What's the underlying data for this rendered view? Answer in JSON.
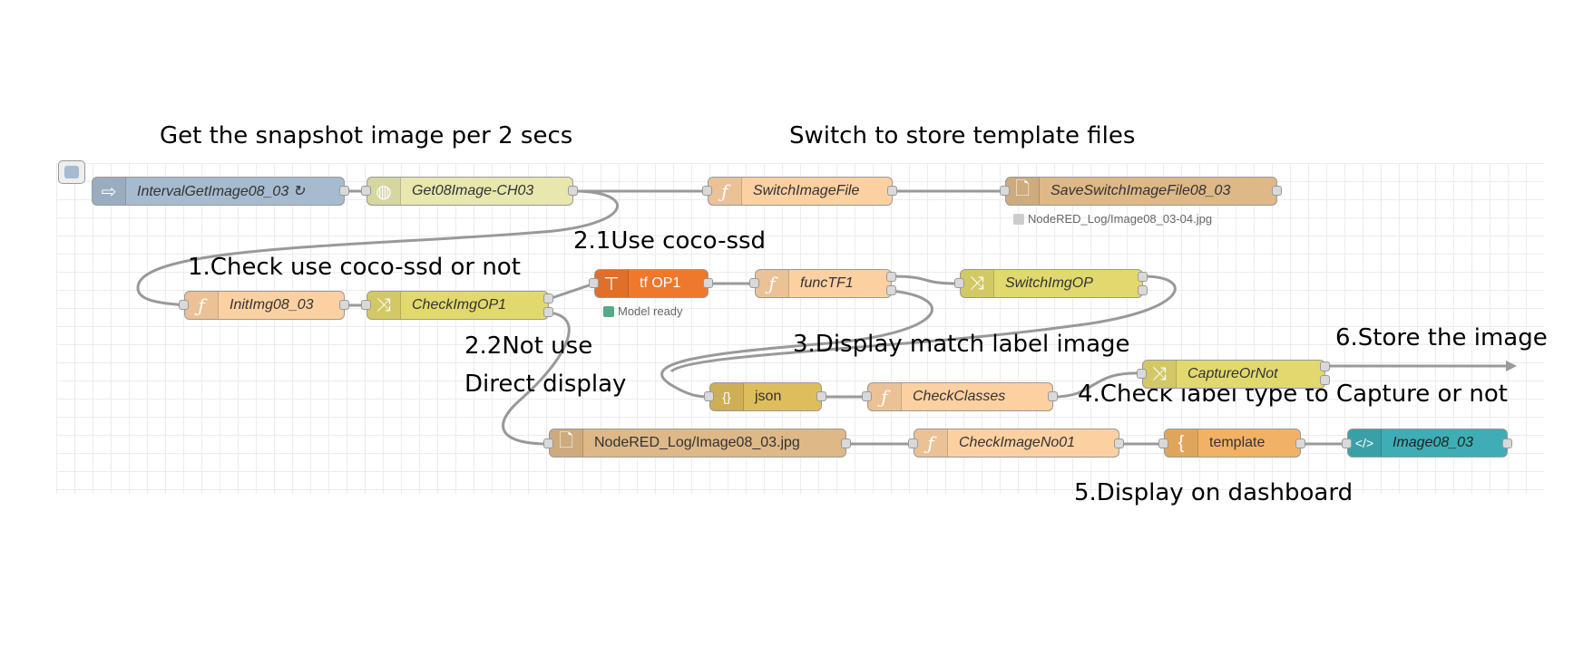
{
  "captions": {
    "get_snapshot": "Get the snapshot image per 2 secs",
    "switch_store": "Switch to store template files",
    "use_cocossd": "2.1Use coco-ssd",
    "check_use": "1.Check use coco-ssd or not",
    "not_use_1": "2.2Not use",
    "not_use_2": "Direct display",
    "display_match": "3.Display match label image",
    "store_image": "6.Store the image",
    "check_label": "4.Check label type to Capture or not",
    "display_dashboard": "5.Display on dashboard"
  },
  "nodes": {
    "interval": {
      "label": "IntervalGetImage08_03 ↻",
      "icon": "arrow-icon",
      "color": "#a6bbcf"
    },
    "get08": {
      "label": "Get08Image-CH03",
      "icon": "globe-icon",
      "color": "#e7e7ae"
    },
    "switchImageFile": {
      "label": "SwitchImageFile",
      "icon": "function-icon",
      "color": "#fdd0a2"
    },
    "saveSwitch": {
      "label": "SaveSwitchImageFile08_03",
      "icon": "file-icon",
      "color": "#deb887"
    },
    "initImg": {
      "label": "InitImg08_03",
      "icon": "function-icon",
      "color": "#fdd0a2"
    },
    "checkImgOP1": {
      "label": "CheckImgOP1",
      "icon": "switch-icon",
      "color": "#e2d96e"
    },
    "tfOP1": {
      "label": "tf OP1",
      "icon": "tensorflow-icon",
      "color": "#f0782d"
    },
    "funcTF1": {
      "label": "funcTF1",
      "icon": "function-icon",
      "color": "#fdd0a2"
    },
    "switchImgOP": {
      "label": "SwitchImgOP",
      "icon": "switch-icon",
      "color": "#e2d96e"
    },
    "captureOrNot": {
      "label": "CaptureOrNot",
      "icon": "switch-icon",
      "color": "#e2d96e"
    },
    "json": {
      "label": "json",
      "icon": "json-icon",
      "color": "#debd5c"
    },
    "checkClasses": {
      "label": "CheckClasses",
      "icon": "function-icon",
      "color": "#fdd0a2"
    },
    "nodeRedLog": {
      "label": "NodeRED_Log/Image08_03.jpg",
      "icon": "file-icon",
      "color": "#deb887"
    },
    "checkImageNo": {
      "label": "CheckImageNo01",
      "icon": "function-icon",
      "color": "#fdd0a2"
    },
    "template": {
      "label": "template",
      "icon": "template-icon",
      "color": "#f2b265"
    },
    "image0803": {
      "label": "Image08_03",
      "icon": "code-icon",
      "color": "#3fadb5"
    }
  },
  "status": {
    "save_file": "NodeRED_Log/Image08_03-04.jpg",
    "model": "Model ready"
  },
  "colors": {
    "wire": "#999999",
    "status_ok": "#5a8",
    "status_grey": "#cccccc"
  }
}
